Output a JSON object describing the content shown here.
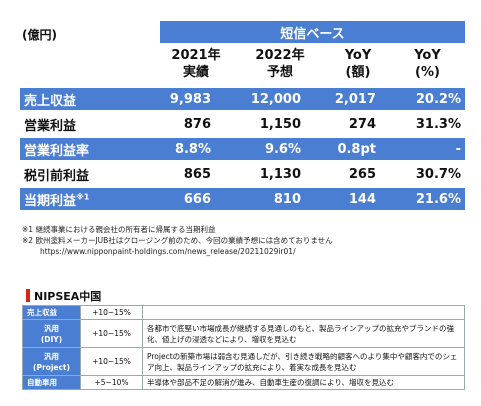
{
  "unit_label": "(億円)",
  "basis_label": "短信ベース",
  "headers": {
    "fy2021": [
      "2021年",
      "実績"
    ],
    "fy2022": [
      "2022年",
      "予想"
    ],
    "yoy_amt": [
      "YoY",
      "(額)"
    ],
    "yoy_pct": [
      "YoY",
      "(%)"
    ]
  },
  "rows": [
    {
      "label": "売上収益",
      "sup": "",
      "v2021": "9,983",
      "v2022": "12,000",
      "yoy": "2,017",
      "yoy_pct": "20.2%"
    },
    {
      "label": "営業利益",
      "sup": "",
      "v2021": "876",
      "v2022": "1,150",
      "yoy": "274",
      "yoy_pct": "31.3%"
    },
    {
      "label": "営業利益率",
      "sup": "",
      "v2021": "8.8%",
      "v2022": "9.6%",
      "yoy": "0.8pt",
      "yoy_pct": "-"
    },
    {
      "label": "税引前利益",
      "sup": "",
      "v2021": "865",
      "v2022": "1,130",
      "yoy": "265",
      "yoy_pct": "30.7%"
    },
    {
      "label": "当期利益",
      "sup": "※1",
      "v2021": "666",
      "v2022": "810",
      "yoy": "144",
      "yoy_pct": "21.6%"
    }
  ],
  "notes": [
    "※1 継続事業における親会社の所有者に帰属する当期利益",
    "※2 欧州塗料メーカーJUB社はクロージング前のため、今回の業績予想には含めておりません",
    "https://www.nipponpaint-holdings.com/news_release/20211029ir01/"
  ],
  "section_title": "NIPSEA中国",
  "segments": [
    {
      "name": "売上収益",
      "range": "+10~15%",
      "desc": ""
    },
    {
      "name": "汎用\n(DIY)",
      "range": "+10~15%",
      "desc": "各都市で底堅い市場成長が継続する見通しのもと、製品ラインアップの拡充やブランドの強化、値上げの浸透などにより、増収を見込む"
    },
    {
      "name": "汎用\n(Project)",
      "range": "+10~15%",
      "desc": "Projectの新築市場は弱含む見通しだが、引き続き戦略的顧客へのより集中や顧客内でのシェア向上、製品ラインアップの拡充により、着実な成長を見込む"
    },
    {
      "name": "自動車用",
      "range": "+5~10%",
      "desc": "半導体や部品不足の解消が進み、自動車生産の復調により、増収を見込む"
    }
  ]
}
